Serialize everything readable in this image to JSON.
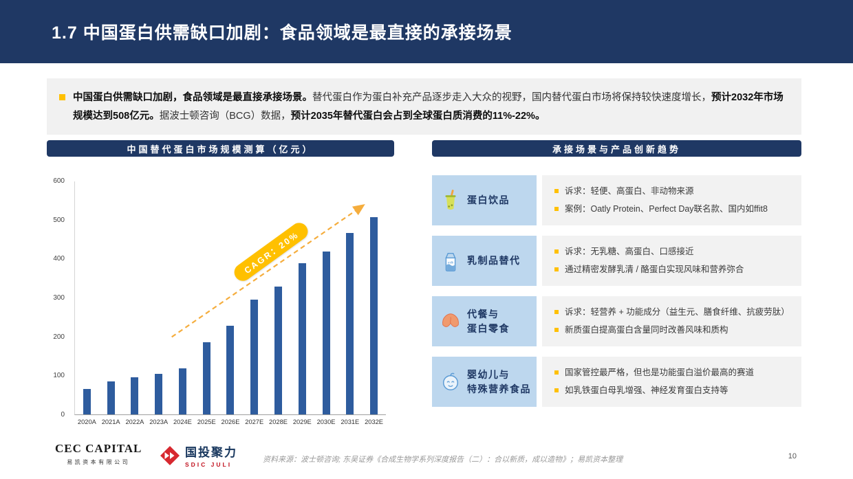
{
  "header": {
    "title": "1.7 中国蛋白供需缺口加剧：食品领域是最直接的承接场景"
  },
  "summary": {
    "segments": [
      {
        "text": "中国蛋白供需缺口加剧，食品领域是最直接承接场景。",
        "bold": true
      },
      {
        "text": "替代蛋白作为蛋白补充产品逐步走入大众的视野，国内替代蛋白市场将保持较快速度增长，",
        "bold": false
      },
      {
        "text": "预计2032年市场规模达到508亿元。",
        "bold": true
      },
      {
        "text": "据波士顿咨询（BCG）数据，",
        "bold": false
      },
      {
        "text": "预计2035年替代蛋白会占到全球蛋白质消费的11%-22%。",
        "bold": true
      }
    ]
  },
  "left_panel": {
    "title": "中国替代蛋白市场规模测算（亿元）"
  },
  "chart_data": {
    "type": "bar",
    "title": "中国替代蛋白市场规模测算（亿元）",
    "categories": [
      "2020A",
      "2021A",
      "2022A",
      "2023A",
      "2024E",
      "2025E",
      "2026E",
      "2027E",
      "2028E",
      "2029E",
      "2030E",
      "2031E",
      "2032E"
    ],
    "values": [
      65,
      85,
      95,
      105,
      118,
      185,
      228,
      295,
      330,
      390,
      420,
      468,
      508
    ],
    "ylim": [
      0,
      600
    ],
    "yticks": [
      0,
      100,
      200,
      300,
      400,
      500,
      600
    ],
    "annotation": "CAGR：20%",
    "bar_color": "#2E5C9E",
    "grid": false,
    "legend": "none"
  },
  "right_panel": {
    "title": "承接场景与产品创新趋势",
    "rows": [
      {
        "icon": "protein-drink-icon",
        "label": "蛋白饮品",
        "bullets": [
          "诉求：轻便、高蛋白、非动物来源",
          "案例：Oatly Protein、Perfect Day联名款、国内如ffit8"
        ]
      },
      {
        "icon": "milk-carton-icon",
        "label": "乳制品替代",
        "bullets": [
          "诉求：无乳糖、高蛋白、口感接近",
          "通过精密发酵乳清 / 酪蛋白实现风味和营养弥合"
        ]
      },
      {
        "icon": "fortune-cookie-icon",
        "label": "代餐与\n蛋白零食",
        "bullets": [
          "诉求：轻营养 + 功能成分（益生元、膳食纤维、抗疲劳肽）",
          "新质蛋白提高蛋白含量同时改善风味和质构"
        ]
      },
      {
        "icon": "baby-face-icon",
        "label": "婴幼儿与\n特殊营养食品",
        "bullets": [
          "国家管控最严格，但也是功能蛋白溢价最高的赛道",
          "如乳铁蛋白母乳增强、神经发育蛋白支持等"
        ]
      }
    ]
  },
  "footer": {
    "cec_logo_text": "CEC CAPITAL",
    "cec_subtext": "易凯资本有限公司",
    "sdic_logo_text": "国投聚力",
    "sdic_subtext": "SDIC JULI",
    "source": "资料来源：波士顿咨询; 东吴证券《合成生物学系列深度报告（二）：合以新质，成以造物》；易凯资本整理",
    "page_number": "10"
  },
  "colors": {
    "header_navy": "#1F3864",
    "bar_blue": "#2E5C9E",
    "accent_yellow": "#FFC000",
    "light_blue": "#BDD7EE",
    "light_gray": "#F2F2F2",
    "arrow_orange": "#F5AD3D",
    "logo_red": "#C1121F"
  }
}
